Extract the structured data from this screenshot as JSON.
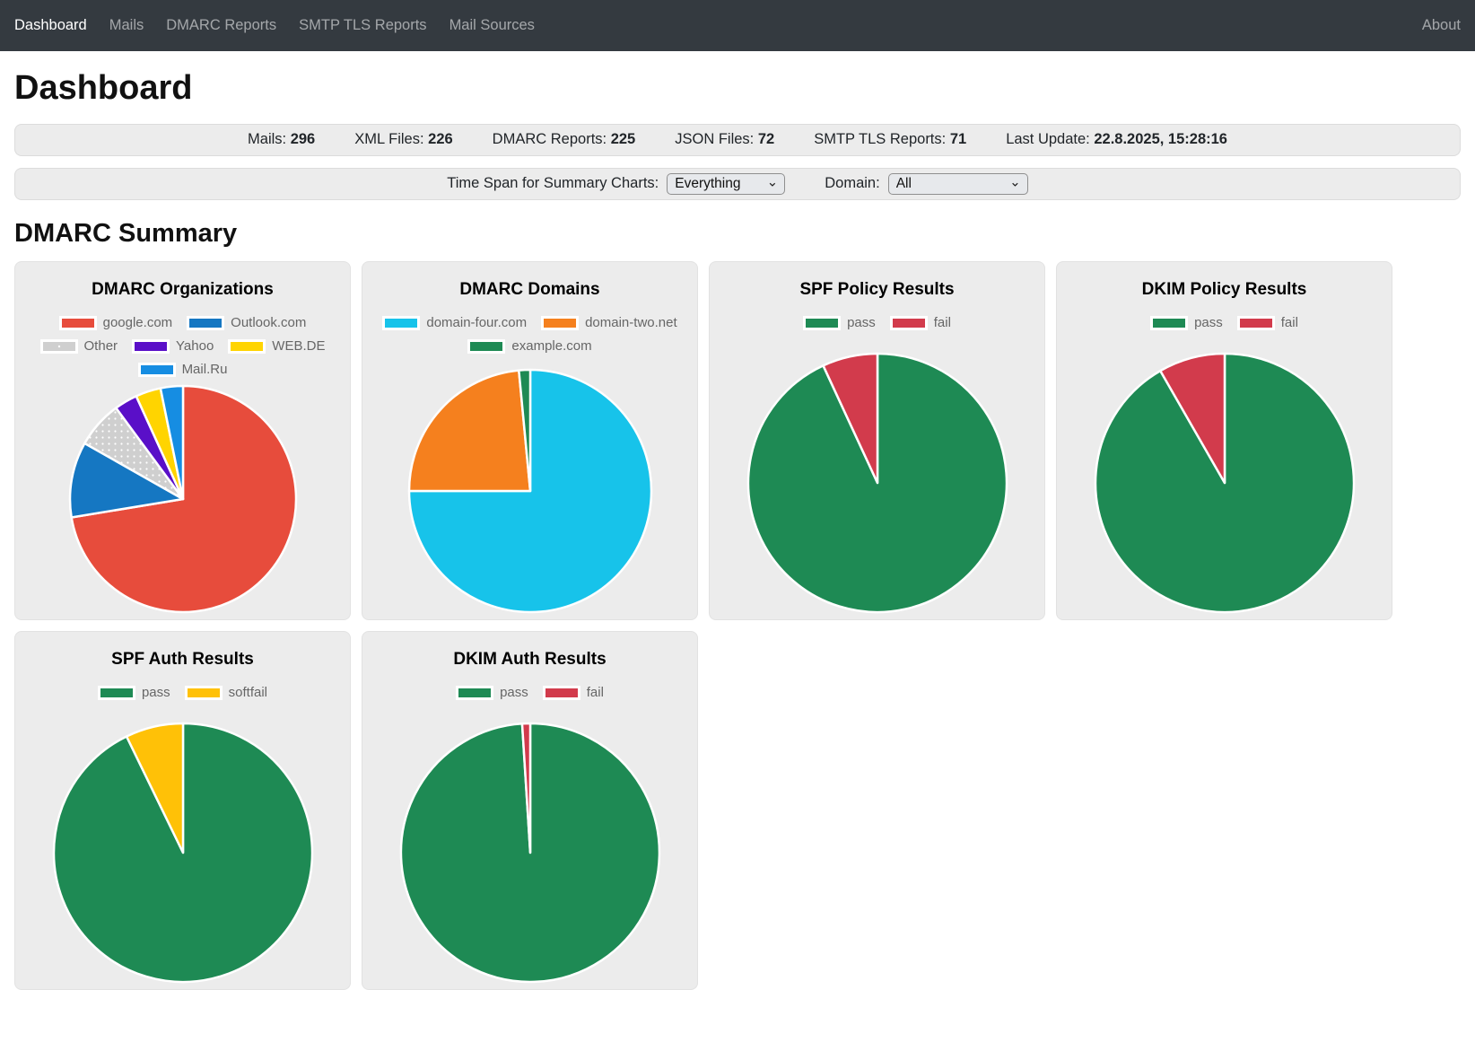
{
  "navbar": {
    "items": [
      {
        "label": "Dashboard",
        "active": true
      },
      {
        "label": "Mails",
        "active": false
      },
      {
        "label": "DMARC Reports",
        "active": false
      },
      {
        "label": "SMTP TLS Reports",
        "active": false
      },
      {
        "label": "Mail Sources",
        "active": false
      }
    ],
    "right_items": [
      {
        "label": "About",
        "active": false
      }
    ]
  },
  "page_title": "Dashboard",
  "stats": [
    {
      "label": "Mails:",
      "value": "296"
    },
    {
      "label": "XML Files:",
      "value": "226"
    },
    {
      "label": "DMARC Reports:",
      "value": "225"
    },
    {
      "label": "JSON Files:",
      "value": "72"
    },
    {
      "label": "SMTP TLS Reports:",
      "value": "71"
    },
    {
      "label": "Last Update:",
      "value": "22.8.2025, 15:28:16"
    }
  ],
  "filters": {
    "time_span": {
      "label": "Time Span for Summary Charts:",
      "value": "Everything"
    },
    "domain": {
      "label": "Domain:",
      "value": "All"
    }
  },
  "section_title": "DMARC Summary",
  "chart_data": [
    {
      "type": "pie",
      "title": "DMARC Organizations",
      "legend_position": "top",
      "slices": [
        {
          "label": "google.com",
          "color": "#E74C3C",
          "percent": 72.4
        },
        {
          "label": "Outlook.com",
          "color": "#1577C2",
          "percent": 10.8
        },
        {
          "label": "Other",
          "color": "#CFCFCF",
          "percent": 6.7,
          "pattern": "dots"
        },
        {
          "label": "Yahoo",
          "color": "#5A0FC8",
          "percent": 3.3
        },
        {
          "label": "WEB.DE",
          "color": "#FFD400",
          "percent": 3.6
        },
        {
          "label": "Mail.Ru",
          "color": "#168DE2",
          "percent": 3.2
        }
      ]
    },
    {
      "type": "pie",
      "title": "DMARC Domains",
      "legend_position": "top",
      "slices": [
        {
          "label": "domain-four.com",
          "color": "#17C3EA",
          "percent": 75.0
        },
        {
          "label": "domain-two.net",
          "color": "#F5801E",
          "percent": 23.5
        },
        {
          "label": "example.com",
          "color": "#1E8A54",
          "percent": 1.5
        }
      ]
    },
    {
      "type": "pie",
      "title": "SPF Policy Results",
      "legend_position": "top",
      "slices": [
        {
          "label": "pass",
          "color": "#1E8A54",
          "percent": 93.1
        },
        {
          "label": "fail",
          "color": "#D23B4C",
          "percent": 6.9
        }
      ]
    },
    {
      "type": "pie",
      "title": "DKIM Policy Results",
      "legend_position": "top",
      "slices": [
        {
          "label": "pass",
          "color": "#1E8A54",
          "percent": 91.7
        },
        {
          "label": "fail",
          "color": "#D23B4C",
          "percent": 8.3
        }
      ]
    },
    {
      "type": "pie",
      "title": "SPF Auth Results",
      "legend_position": "top",
      "slices": [
        {
          "label": "pass",
          "color": "#1E8A54",
          "percent": 92.8
        },
        {
          "label": "softfail",
          "color": "#FFC107",
          "percent": 7.2
        }
      ]
    },
    {
      "type": "pie",
      "title": "DKIM Auth Results",
      "legend_position": "top",
      "slices": [
        {
          "label": "pass",
          "color": "#1E8A54",
          "percent": 99.0
        },
        {
          "label": "fail",
          "color": "#D23B4C",
          "percent": 1.0
        }
      ]
    }
  ]
}
